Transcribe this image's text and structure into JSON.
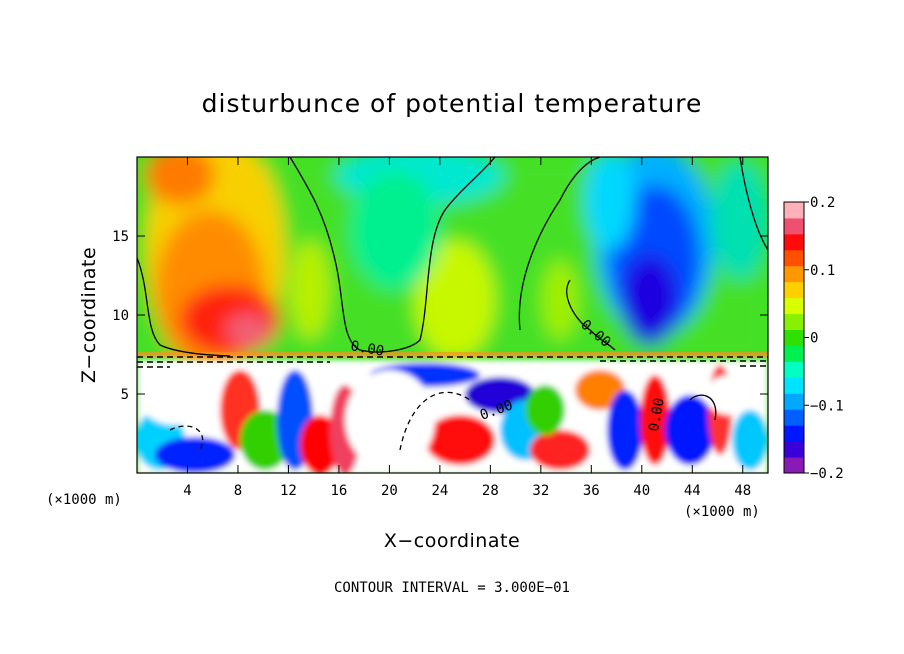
{
  "chart_data": {
    "type": "heatmap",
    "title": "disturbunce of potential temperature",
    "xlabel": "X−coordinate",
    "ylabel": "Z−coordinate",
    "x_unit_left": "(×1000 m)",
    "x_unit_right": "(×1000 m)",
    "xlim": [
      0,
      50
    ],
    "ylim": [
      0,
      20
    ],
    "x_ticks": [
      4,
      8,
      12,
      16,
      20,
      24,
      28,
      32,
      36,
      40,
      44,
      48
    ],
    "y_ticks": [
      5,
      10,
      15
    ],
    "colorbar": {
      "range": [
        -0.2,
        0.2
      ],
      "tick_values": [
        -0.2,
        -0.1,
        0,
        0.1,
        0.2
      ],
      "tick_labels": [
        "−0.2",
        "−0.1",
        "0",
        "0.1",
        "0.2"
      ],
      "colors": [
        "#8a1ab4",
        "#3a00d8",
        "#0018ff",
        "#0060ff",
        "#00a8ff",
        "#00e4ff",
        "#00ffc0",
        "#00f050",
        "#30e000",
        "#88f000",
        "#d8ff00",
        "#ffd000",
        "#ff9800",
        "#ff5000",
        "#ff0a0a",
        "#f05070",
        "#ffb0b8"
      ]
    },
    "contour_labels": [
      "0.00",
      "0.00",
      "0.00",
      "0.00"
    ],
    "contour_interval_text": "CONTOUR INTERVAL = 3.000E−01",
    "annotations": {
      "upper_layer": "smooth field above z ≈ 7.5 km; warm (≈+0.12 to +0.2) near x 4–12, cool (≈−0.1 to −0.2) near x 38–46",
      "lower_layer": "turbulent field below z ≈ 7.5 km with values exceeding colorbar range"
    }
  }
}
